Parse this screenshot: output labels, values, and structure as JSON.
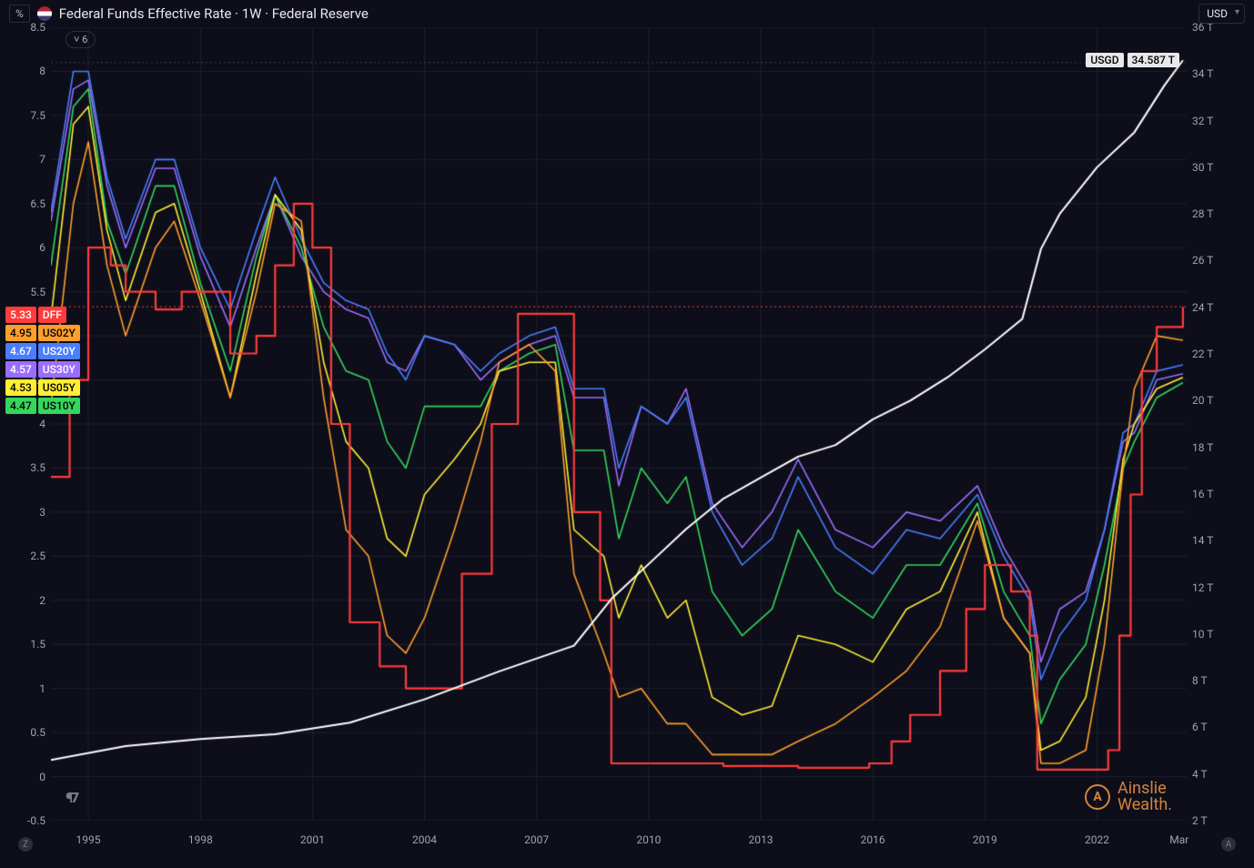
{
  "header": {
    "percent_label": "%",
    "title": "Federal Funds Effective Rate · 1W · Federal Reserve",
    "currency": "USD",
    "series_count": "6"
  },
  "left_axis": {
    "min": -0.5,
    "max": 8.5,
    "step": 0.5,
    "label": "%"
  },
  "right_axis": {
    "min": 2,
    "max": 36,
    "step": 2,
    "suffix": " T"
  },
  "x_axis": {
    "min": 1994,
    "max": 2024.4,
    "ticks": [
      1995,
      1998,
      2001,
      2004,
      2007,
      2010,
      2013,
      2016,
      2019,
      2022
    ],
    "extra_label": "Mar"
  },
  "colors": {
    "background": "#0d0e1a",
    "grid": "#1e222d",
    "dotted": "#3a3e4a",
    "axis_text": "#a0a3ad",
    "DFF": "#ff3b3b",
    "US02Y": "#ff9e2c",
    "US20Y": "#4a7dff",
    "US30Y": "#9b6dff",
    "US05Y": "#ffee33",
    "US10Y": "#35d65c",
    "USGD": "#ffffff"
  },
  "legend_series": [
    {
      "value": "5.33",
      "name": "DFF",
      "color_key": "DFF",
      "text_color": "#ffffff"
    },
    {
      "value": "4.95",
      "name": "US02Y",
      "color_key": "US02Y",
      "text_color": "#000000"
    },
    {
      "value": "4.67",
      "name": "US20Y",
      "color_key": "US20Y",
      "text_color": "#ffffff"
    },
    {
      "value": "4.57",
      "name": "US30Y",
      "color_key": "US30Y",
      "text_color": "#ffffff"
    },
    {
      "value": "4.53",
      "name": "US05Y",
      "color_key": "US05Y",
      "text_color": "#000000"
    },
    {
      "value": "4.47",
      "name": "US10Y",
      "color_key": "US10Y",
      "text_color": "#000000"
    }
  ],
  "usgd_badge": {
    "label": "USGD",
    "value": "34.587 T",
    "y_value": 34.587
  },
  "crosshair_left": {
    "value": 5.33,
    "color_key": "DFF"
  },
  "dotted_top_y": 8.1,
  "line_width": 1.6,
  "dff_line_width": 2.2,
  "series": {
    "DFF": [
      [
        1994,
        3.4
      ],
      [
        1994.5,
        4.5
      ],
      [
        1995,
        6.0
      ],
      [
        1995.6,
        5.8
      ],
      [
        1996,
        5.5
      ],
      [
        1996.8,
        5.3
      ],
      [
        1997.5,
        5.5
      ],
      [
        1998,
        5.5
      ],
      [
        1998.8,
        4.8
      ],
      [
        1999.5,
        5.0
      ],
      [
        2000,
        5.8
      ],
      [
        2000.5,
        6.5
      ],
      [
        2001,
        6.0
      ],
      [
        2001.5,
        4.0
      ],
      [
        2002,
        1.75
      ],
      [
        2002.8,
        1.25
      ],
      [
        2003.5,
        1.0
      ],
      [
        2004.5,
        1.0
      ],
      [
        2005,
        2.3
      ],
      [
        2005.8,
        4.0
      ],
      [
        2006.5,
        5.25
      ],
      [
        2007.5,
        5.25
      ],
      [
        2008,
        3.0
      ],
      [
        2008.7,
        2.0
      ],
      [
        2009,
        0.15
      ],
      [
        2010,
        0.15
      ],
      [
        2012,
        0.12
      ],
      [
        2014,
        0.1
      ],
      [
        2015.9,
        0.15
      ],
      [
        2016.5,
        0.4
      ],
      [
        2017,
        0.7
      ],
      [
        2017.8,
        1.2
      ],
      [
        2018.5,
        1.9
      ],
      [
        2019,
        2.4
      ],
      [
        2019.7,
        2.1
      ],
      [
        2020.2,
        1.6
      ],
      [
        2020.4,
        0.08
      ],
      [
        2021.8,
        0.08
      ],
      [
        2022.3,
        0.3
      ],
      [
        2022.6,
        1.6
      ],
      [
        2022.9,
        3.2
      ],
      [
        2023.2,
        4.6
      ],
      [
        2023.6,
        5.1
      ],
      [
        2024.3,
        5.33
      ]
    ],
    "US02Y": [
      [
        1994,
        4.2
      ],
      [
        1994.6,
        6.5
      ],
      [
        1995,
        7.2
      ],
      [
        1995.5,
        5.8
      ],
      [
        1996,
        5.0
      ],
      [
        1996.8,
        6.0
      ],
      [
        1997.3,
        6.3
      ],
      [
        1998,
        5.4
      ],
      [
        1998.8,
        4.3
      ],
      [
        1999.5,
        5.5
      ],
      [
        2000,
        6.5
      ],
      [
        2000.7,
        6.3
      ],
      [
        2001.3,
        4.3
      ],
      [
        2001.9,
        2.8
      ],
      [
        2002.5,
        2.5
      ],
      [
        2003,
        1.6
      ],
      [
        2003.5,
        1.4
      ],
      [
        2004,
        1.8
      ],
      [
        2004.8,
        2.8
      ],
      [
        2005.5,
        3.8
      ],
      [
        2006,
        4.7
      ],
      [
        2006.8,
        4.9
      ],
      [
        2007.5,
        4.6
      ],
      [
        2008,
        2.3
      ],
      [
        2008.8,
        1.4
      ],
      [
        2009.2,
        0.9
      ],
      [
        2009.8,
        1.0
      ],
      [
        2010.5,
        0.6
      ],
      [
        2011,
        0.6
      ],
      [
        2011.7,
        0.25
      ],
      [
        2012.5,
        0.25
      ],
      [
        2013.3,
        0.25
      ],
      [
        2014,
        0.4
      ],
      [
        2015,
        0.6
      ],
      [
        2016,
        0.9
      ],
      [
        2016.9,
        1.2
      ],
      [
        2017.8,
        1.7
      ],
      [
        2018.8,
        2.9
      ],
      [
        2019.5,
        1.8
      ],
      [
        2020.2,
        1.4
      ],
      [
        2020.5,
        0.15
      ],
      [
        2021,
        0.15
      ],
      [
        2021.7,
        0.3
      ],
      [
        2022.2,
        1.5
      ],
      [
        2022.7,
        3.5
      ],
      [
        2023,
        4.4
      ],
      [
        2023.6,
        5.0
      ],
      [
        2024.3,
        4.95
      ]
    ],
    "US05Y": [
      [
        1994,
        5.2
      ],
      [
        1994.6,
        7.4
      ],
      [
        1995,
        7.6
      ],
      [
        1995.5,
        6.2
      ],
      [
        1996,
        5.4
      ],
      [
        1996.8,
        6.4
      ],
      [
        1997.3,
        6.5
      ],
      [
        1998,
        5.5
      ],
      [
        1998.8,
        4.3
      ],
      [
        1999.5,
        5.7
      ],
      [
        2000,
        6.6
      ],
      [
        2000.7,
        6.2
      ],
      [
        2001.3,
        4.7
      ],
      [
        2001.9,
        3.8
      ],
      [
        2002.5,
        3.5
      ],
      [
        2003,
        2.7
      ],
      [
        2003.5,
        2.5
      ],
      [
        2004,
        3.2
      ],
      [
        2004.8,
        3.6
      ],
      [
        2005.5,
        4.0
      ],
      [
        2006,
        4.6
      ],
      [
        2006.8,
        4.7
      ],
      [
        2007.5,
        4.7
      ],
      [
        2008,
        2.8
      ],
      [
        2008.8,
        2.5
      ],
      [
        2009.2,
        1.8
      ],
      [
        2009.8,
        2.4
      ],
      [
        2010.5,
        1.8
      ],
      [
        2011,
        2.0
      ],
      [
        2011.7,
        0.9
      ],
      [
        2012.5,
        0.7
      ],
      [
        2013.3,
        0.8
      ],
      [
        2014,
        1.6
      ],
      [
        2015,
        1.5
      ],
      [
        2016,
        1.3
      ],
      [
        2016.9,
        1.9
      ],
      [
        2017.8,
        2.1
      ],
      [
        2018.8,
        3.0
      ],
      [
        2019.5,
        1.8
      ],
      [
        2020.2,
        1.4
      ],
      [
        2020.5,
        0.3
      ],
      [
        2021,
        0.4
      ],
      [
        2021.7,
        0.9
      ],
      [
        2022.2,
        2.0
      ],
      [
        2022.7,
        3.6
      ],
      [
        2023,
        4.0
      ],
      [
        2023.6,
        4.4
      ],
      [
        2024.3,
        4.53
      ]
    ],
    "US10Y": [
      [
        1994,
        5.8
      ],
      [
        1994.6,
        7.6
      ],
      [
        1995,
        7.8
      ],
      [
        1995.5,
        6.3
      ],
      [
        1996,
        5.7
      ],
      [
        1996.8,
        6.7
      ],
      [
        1997.3,
        6.7
      ],
      [
        1998,
        5.6
      ],
      [
        1998.8,
        4.6
      ],
      [
        1999.5,
        5.9
      ],
      [
        2000,
        6.6
      ],
      [
        2000.7,
        6.0
      ],
      [
        2001.3,
        5.1
      ],
      [
        2001.9,
        4.6
      ],
      [
        2002.5,
        4.5
      ],
      [
        2003,
        3.8
      ],
      [
        2003.5,
        3.5
      ],
      [
        2004,
        4.2
      ],
      [
        2004.8,
        4.2
      ],
      [
        2005.5,
        4.2
      ],
      [
        2006,
        4.6
      ],
      [
        2006.8,
        4.8
      ],
      [
        2007.5,
        4.9
      ],
      [
        2008,
        3.7
      ],
      [
        2008.8,
        3.7
      ],
      [
        2009.2,
        2.7
      ],
      [
        2009.8,
        3.5
      ],
      [
        2010.5,
        3.1
      ],
      [
        2011,
        3.4
      ],
      [
        2011.7,
        2.1
      ],
      [
        2012.5,
        1.6
      ],
      [
        2013.3,
        1.9
      ],
      [
        2014,
        2.8
      ],
      [
        2015,
        2.1
      ],
      [
        2016,
        1.8
      ],
      [
        2016.9,
        2.4
      ],
      [
        2017.8,
        2.4
      ],
      [
        2018.8,
        3.1
      ],
      [
        2019.5,
        2.1
      ],
      [
        2020.2,
        1.6
      ],
      [
        2020.5,
        0.6
      ],
      [
        2021,
        1.1
      ],
      [
        2021.7,
        1.5
      ],
      [
        2022.2,
        2.4
      ],
      [
        2022.7,
        3.5
      ],
      [
        2023,
        3.8
      ],
      [
        2023.6,
        4.3
      ],
      [
        2024.3,
        4.47
      ]
    ],
    "US20Y": [
      [
        1994,
        6.4
      ],
      [
        1994.6,
        8.0
      ],
      [
        1995,
        8.0
      ],
      [
        1995.5,
        6.8
      ],
      [
        1996,
        6.1
      ],
      [
        1996.8,
        7.0
      ],
      [
        1997.3,
        7.0
      ],
      [
        1998,
        6.0
      ],
      [
        1998.8,
        5.3
      ],
      [
        1999.5,
        6.2
      ],
      [
        2000,
        6.8
      ],
      [
        2000.7,
        6.1
      ],
      [
        2001.3,
        5.6
      ],
      [
        2001.9,
        5.4
      ],
      [
        2002.5,
        5.3
      ],
      [
        2003,
        4.8
      ],
      [
        2003.5,
        4.5
      ],
      [
        2004,
        5.0
      ],
      [
        2004.8,
        4.9
      ],
      [
        2005.5,
        4.6
      ],
      [
        2006,
        4.8
      ],
      [
        2006.8,
        5.0
      ],
      [
        2007.5,
        5.1
      ],
      [
        2008,
        4.4
      ],
      [
        2008.8,
        4.4
      ],
      [
        2009.2,
        3.5
      ],
      [
        2009.8,
        4.2
      ],
      [
        2010.5,
        4.0
      ],
      [
        2011,
        4.3
      ],
      [
        2011.7,
        3.0
      ],
      [
        2012.5,
        2.4
      ],
      [
        2013.3,
        2.7
      ],
      [
        2014,
        3.4
      ],
      [
        2015,
        2.6
      ],
      [
        2016,
        2.3
      ],
      [
        2016.9,
        2.8
      ],
      [
        2017.8,
        2.7
      ],
      [
        2018.8,
        3.2
      ],
      [
        2019.5,
        2.5
      ],
      [
        2020.2,
        2.0
      ],
      [
        2020.5,
        1.1
      ],
      [
        2021,
        1.6
      ],
      [
        2021.7,
        2.0
      ],
      [
        2022.2,
        2.8
      ],
      [
        2022.7,
        3.9
      ],
      [
        2023,
        4.0
      ],
      [
        2023.6,
        4.6
      ],
      [
        2024.3,
        4.67
      ]
    ],
    "US30Y": [
      [
        1994,
        6.3
      ],
      [
        1994.6,
        7.8
      ],
      [
        1995,
        7.9
      ],
      [
        1995.5,
        6.7
      ],
      [
        1996,
        6.0
      ],
      [
        1996.8,
        6.9
      ],
      [
        1997.3,
        6.9
      ],
      [
        1998,
        5.9
      ],
      [
        1998.8,
        5.1
      ],
      [
        1999.5,
        6.0
      ],
      [
        2000,
        6.6
      ],
      [
        2000.7,
        5.9
      ],
      [
        2001.3,
        5.5
      ],
      [
        2001.9,
        5.3
      ],
      [
        2002.5,
        5.2
      ],
      [
        2003,
        4.7
      ],
      [
        2003.5,
        4.6
      ],
      [
        2004,
        5.0
      ],
      [
        2004.8,
        4.9
      ],
      [
        2005.5,
        4.5
      ],
      [
        2006,
        4.7
      ],
      [
        2006.8,
        4.9
      ],
      [
        2007.5,
        5.0
      ],
      [
        2008,
        4.3
      ],
      [
        2008.8,
        4.3
      ],
      [
        2009.2,
        3.3
      ],
      [
        2009.8,
        4.2
      ],
      [
        2010.5,
        4.0
      ],
      [
        2011,
        4.4
      ],
      [
        2011.7,
        3.1
      ],
      [
        2012.5,
        2.6
      ],
      [
        2013.3,
        3.0
      ],
      [
        2014,
        3.6
      ],
      [
        2015,
        2.8
      ],
      [
        2016,
        2.6
      ],
      [
        2016.9,
        3.0
      ],
      [
        2017.8,
        2.9
      ],
      [
        2018.8,
        3.3
      ],
      [
        2019.5,
        2.6
      ],
      [
        2020.2,
        2.1
      ],
      [
        2020.5,
        1.3
      ],
      [
        2021,
        1.9
      ],
      [
        2021.7,
        2.1
      ],
      [
        2022.2,
        2.8
      ],
      [
        2022.7,
        3.8
      ],
      [
        2023,
        3.9
      ],
      [
        2023.6,
        4.5
      ],
      [
        2024.3,
        4.57
      ]
    ],
    "USGD": [
      [
        1994,
        4.6
      ],
      [
        1996,
        5.2
      ],
      [
        1998,
        5.5
      ],
      [
        2000,
        5.7
      ],
      [
        2002,
        6.2
      ],
      [
        2004,
        7.2
      ],
      [
        2006,
        8.4
      ],
      [
        2008,
        9.5
      ],
      [
        2009,
        11.5
      ],
      [
        2010,
        13.0
      ],
      [
        2011,
        14.5
      ],
      [
        2012,
        15.8
      ],
      [
        2013,
        16.7
      ],
      [
        2014,
        17.6
      ],
      [
        2015,
        18.1
      ],
      [
        2016,
        19.2
      ],
      [
        2017,
        20.0
      ],
      [
        2018,
        21.0
      ],
      [
        2019,
        22.2
      ],
      [
        2020,
        23.5
      ],
      [
        2020.5,
        26.5
      ],
      [
        2021,
        28.0
      ],
      [
        2022,
        30.0
      ],
      [
        2023,
        31.5
      ],
      [
        2023.8,
        33.5
      ],
      [
        2024.3,
        34.587
      ]
    ]
  },
  "attribution": {
    "brand": "Ainslie",
    "subtitle": "Wealth."
  },
  "tv_logo": "¶7",
  "corners": {
    "left": "Z",
    "right": "A"
  }
}
